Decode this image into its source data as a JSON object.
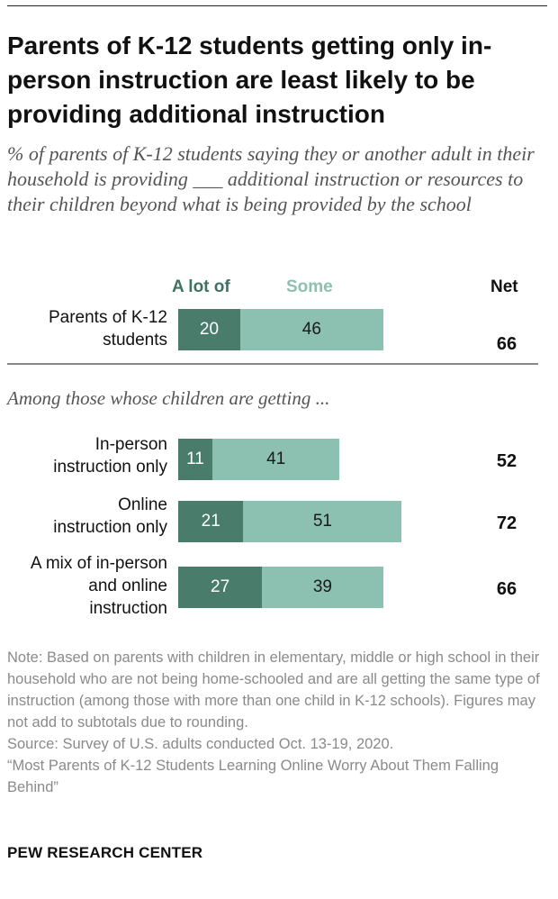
{
  "title": "Parents of K-12 students getting only in-person instruction are least likely to be providing additional instruction",
  "subtitle": "% of parents of K-12 students saying they or another adult in their household is providing ___ additional instruction or resources to their children beyond what is being provided by the school",
  "legend": {
    "a_lot": "A lot of",
    "some": "Some",
    "net": "Net"
  },
  "section_label": "Among those whose children are getting ...",
  "colors": {
    "a_lot": "#4a7c6c",
    "some": "#8cc0b1"
  },
  "chart_data": {
    "type": "bar",
    "orientation": "horizontal",
    "stacked": true,
    "categories": [
      "Parents of K-12 students",
      "In-person instruction only",
      "Online instruction only",
      "A mix of in-person and online instruction"
    ],
    "series": [
      {
        "name": "A lot of",
        "values": [
          20,
          11,
          21,
          27
        ]
      },
      {
        "name": "Some",
        "values": [
          46,
          41,
          51,
          39
        ]
      }
    ],
    "net": [
      66,
      52,
      72,
      66
    ],
    "row_labels": [
      "Parents of K-12\nstudents",
      "In-person\ninstruction only",
      "Online\ninstruction only",
      "A mix of in-person\nand online\ninstruction"
    ],
    "title": "",
    "xlabel": "",
    "ylabel": "",
    "xlim": [
      0,
      100
    ],
    "grid": false,
    "legend_position": "top"
  },
  "notes": {
    "note": "Note: Based on parents with children in elementary, middle or high school in their household who are not being home-schooled and are all getting the same type of instruction (among those with more than one child in K-12 schools). Figures may not add to subtotals due to rounding.",
    "source": "Source: Survey of U.S. adults conducted Oct. 13-19, 2020.",
    "report": "“Most Parents of K-12 Students Learning Online Worry About Them Falling Behind”"
  },
  "logo": "PEW RESEARCH CENTER"
}
